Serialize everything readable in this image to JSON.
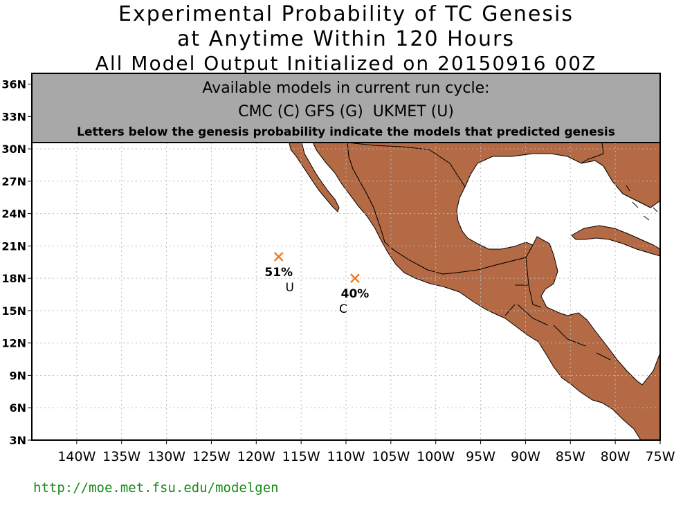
{
  "title": {
    "line1": "Experimental Probability of TC Genesis",
    "line2": "at Anytime Within 120 Hours",
    "line3": "All Model Output Initialized on 20150916 00Z"
  },
  "info_box": {
    "heading": "Available models in current run cycle:",
    "models": "CMC (C) GFS (G)  UKMET (U)",
    "note": "Letters below the genesis probability indicate the models that predicted genesis"
  },
  "map": {
    "lon_range": [
      -145,
      -75
    ],
    "lat_range": [
      3,
      37
    ],
    "lat_ticks": [
      {
        "value": 3,
        "label": "3N"
      },
      {
        "value": 6,
        "label": "6N"
      },
      {
        "value": 9,
        "label": "9N"
      },
      {
        "value": 12,
        "label": "12N"
      },
      {
        "value": 15,
        "label": "15N"
      },
      {
        "value": 18,
        "label": "18N"
      },
      {
        "value": 21,
        "label": "21N"
      },
      {
        "value": 24,
        "label": "24N"
      },
      {
        "value": 27,
        "label": "27N"
      },
      {
        "value": 30,
        "label": "30N"
      },
      {
        "value": 33,
        "label": "33N"
      },
      {
        "value": 36,
        "label": "36N"
      }
    ],
    "lon_ticks": [
      {
        "value": -140,
        "label": "140W"
      },
      {
        "value": -135,
        "label": "135W"
      },
      {
        "value": -130,
        "label": "130W"
      },
      {
        "value": -125,
        "label": "125W"
      },
      {
        "value": -120,
        "label": "120W"
      },
      {
        "value": -115,
        "label": "115W"
      },
      {
        "value": -110,
        "label": "110W"
      },
      {
        "value": -105,
        "label": "105W"
      },
      {
        "value": -100,
        "label": "100W"
      },
      {
        "value": -95,
        "label": "95W"
      },
      {
        "value": -90,
        "label": "90W"
      },
      {
        "value": -85,
        "label": "85W"
      },
      {
        "value": -80,
        "label": "80W"
      },
      {
        "value": -75,
        "label": "75W"
      }
    ],
    "land_color": "#b36a45",
    "marker_color": "#f07a1e",
    "grid": true,
    "markers": [
      {
        "lon": -117.5,
        "lat": 20.0,
        "probability": "51%",
        "models": "U"
      },
      {
        "lon": -109.0,
        "lat": 18.0,
        "probability": "40%",
        "models": "C"
      }
    ]
  },
  "footer": {
    "url": "http://moe.met.fsu.edu/modelgen"
  }
}
